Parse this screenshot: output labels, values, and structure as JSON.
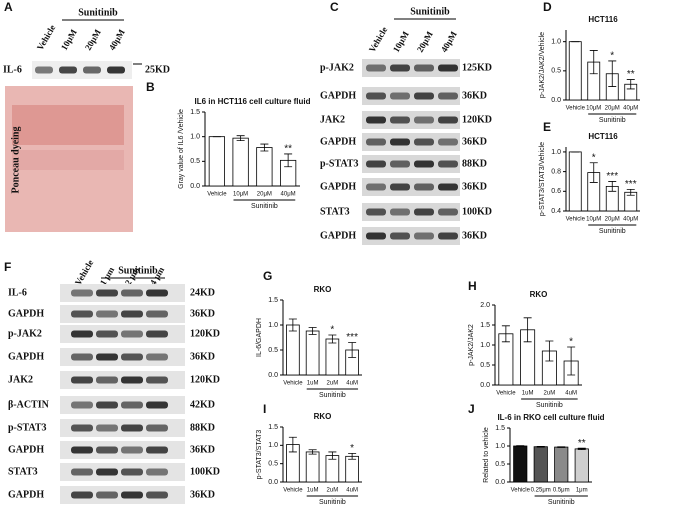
{
  "panels": {
    "letters": [
      "A",
      "B",
      "C",
      "D",
      "E",
      "F",
      "G",
      "H",
      "I",
      "J"
    ]
  },
  "blot_a": {
    "treatment": "Sunitinib",
    "lanes": [
      "Vehicle",
      "10μM",
      "20μM",
      "40μM"
    ],
    "rows": [
      {
        "label": "IL-6",
        "size": "25KD"
      }
    ],
    "stain": "Ponceau dyeing"
  },
  "blot_c": {
    "treatment": "Sunitinib",
    "lanes": [
      "Vehicle",
      "10μM",
      "20μM",
      "40μM"
    ],
    "rows": [
      {
        "label": "p-JAK2",
        "size": "125KD"
      },
      {
        "label": "GAPDH",
        "size": "36KD"
      },
      {
        "label": "JAK2",
        "size": "120KD"
      },
      {
        "label": "GAPDH",
        "size": "36KD"
      },
      {
        "label": "p-STAT3",
        "size": "88KD"
      },
      {
        "label": "GAPDH",
        "size": "36KD"
      },
      {
        "label": "STAT3",
        "size": "100KD"
      },
      {
        "label": "GAPDH",
        "size": "36KD"
      }
    ]
  },
  "blot_f": {
    "treatment": "Sunitinib",
    "lanes": [
      "Vehicle",
      "1 μm",
      "2 μm",
      "4 μm"
    ],
    "rows": [
      {
        "label": "IL-6",
        "size": "24KD"
      },
      {
        "label": "GAPDH",
        "size": "36KD"
      },
      {
        "label": "p-JAK2",
        "size": "120KD"
      },
      {
        "label": "GAPDH",
        "size": "36KD"
      },
      {
        "label": "JAK2",
        "size": "120KD"
      },
      {
        "label": "β-ACTIN",
        "size": "42KD"
      },
      {
        "label": "p-STAT3",
        "size": "88KD"
      },
      {
        "label": "GAPDH",
        "size": "36KD"
      },
      {
        "label": "STAT3",
        "size": "100KD"
      },
      {
        "label": "GAPDH",
        "size": "36KD"
      }
    ]
  },
  "chart_data": [
    {
      "type": "bar",
      "title": "IL6 in HCT116 cell culture fluid",
      "ylabel": "Gray value of IL6 /Vehicle",
      "categories": [
        "Vehicle",
        "10μM",
        "20μM",
        "40μM"
      ],
      "group": "Sunitinib",
      "values": [
        1.0,
        0.97,
        0.78,
        0.52
      ],
      "errors": [
        0,
        0.05,
        0.07,
        0.13
      ],
      "significance": [
        null,
        null,
        null,
        "**"
      ],
      "color": "#ffffff",
      "ylim": [
        0,
        1.5
      ],
      "yticks": [
        {
          "value": 0,
          "label": "0.0"
        },
        0.5,
        {
          "value": 1,
          "label": "1.0"
        },
        1.5
      ]
    },
    {
      "type": "bar",
      "title": "HCT116",
      "ylabel": "p-JAK2/JAK2/Vehicle",
      "categories": [
        "Vehicle",
        "10μM",
        "20μM",
        "40μM"
      ],
      "group": "Sunitinib",
      "values": [
        1.0,
        0.65,
        0.45,
        0.27
      ],
      "errors": [
        0,
        0.2,
        0.22,
        0.08
      ],
      "significance": [
        null,
        null,
        "*",
        "**"
      ],
      "color": "#ffffff",
      "ylim": [
        0,
        1.2
      ],
      "yticks": [
        {
          "value": 0,
          "label": "0.0"
        },
        0.5,
        {
          "value": 1,
          "label": "1.0"
        }
      ]
    },
    {
      "type": "bar",
      "title": "HCT116",
      "ylabel": "p-STAT3/STAT3/Vehicle",
      "categories": [
        "Vehicle",
        "10μM",
        "20μM",
        "40μM"
      ],
      "group": "Sunitinib",
      "values": [
        1.0,
        0.79,
        0.65,
        0.59
      ],
      "errors": [
        0,
        0.1,
        0.05,
        0.03
      ],
      "significance": [
        null,
        "*",
        "***",
        "***"
      ],
      "color": "#ffffff",
      "ylim": [
        0.4,
        1.05
      ],
      "yticks": [
        0.4,
        0.6,
        0.8,
        {
          "value": 1,
          "label": "1.0"
        }
      ]
    },
    {
      "type": "bar",
      "title": "RKO",
      "ylabel": "IL-6/GAPDH",
      "categories": [
        "Vehicle",
        "1uM",
        "2uM",
        "4uM"
      ],
      "group": "Sunitinib",
      "values": [
        1.0,
        0.88,
        0.72,
        0.5
      ],
      "errors": [
        0.12,
        0.07,
        0.08,
        0.15
      ],
      "significance": [
        null,
        null,
        "*",
        "***"
      ],
      "color": "#ffffff",
      "ylim": [
        0,
        1.5
      ],
      "yticks": [
        {
          "value": 0,
          "label": "0.0"
        },
        0.5,
        {
          "value": 1,
          "label": "1.0"
        },
        1.5
      ]
    },
    {
      "type": "bar",
      "title": "RKO",
      "ylabel": "p-JAK2/JAK2",
      "categories": [
        "Vehicle",
        "1uM",
        "2uM",
        "4uM"
      ],
      "group": "Sunitinib",
      "values": [
        1.28,
        1.38,
        0.85,
        0.6
      ],
      "errors": [
        0.2,
        0.3,
        0.25,
        0.35
      ],
      "significance": [
        null,
        null,
        null,
        "*"
      ],
      "color": "#ffffff",
      "ylim": [
        0,
        2.0
      ],
      "yticks": [
        {
          "value": 0,
          "label": "0.0"
        },
        0.5,
        {
          "value": 1,
          "label": "1.0"
        },
        1.5,
        {
          "value": 2,
          "label": "2.0"
        }
      ]
    },
    {
      "type": "bar",
      "title": "RKO",
      "ylabel": "p-STAT3/STAT3",
      "categories": [
        "Vehicle",
        "1uM",
        "2uM",
        "4uM"
      ],
      "group": "Sunitinib",
      "values": [
        1.02,
        0.82,
        0.72,
        0.7
      ],
      "errors": [
        0.2,
        0.06,
        0.1,
        0.08
      ],
      "significance": [
        null,
        null,
        null,
        "*"
      ],
      "color": "#ffffff",
      "ylim": [
        0,
        1.5
      ],
      "yticks": [
        {
          "value": 0,
          "label": "0.0"
        },
        0.5,
        {
          "value": 1,
          "label": "1.0"
        },
        1.5
      ]
    },
    {
      "type": "bar",
      "title": "IL-6 in RKO cell culture fluid",
      "ylabel": "Related to vehicle",
      "categories": [
        "Vehicle",
        "0.25μm",
        "0.5μm",
        "1μm"
      ],
      "group": "Sunitinib",
      "values": [
        1.0,
        0.98,
        0.97,
        0.92
      ],
      "errors": [
        0.01,
        0.01,
        0.01,
        0.02
      ],
      "significance": [
        null,
        null,
        null,
        "**"
      ],
      "colors": [
        "#111111",
        "#555555",
        "#8a8a8a",
        "#cfcfcf"
      ],
      "ylim": [
        0,
        1.5
      ],
      "yticks": [
        {
          "value": 0,
          "label": "0.0"
        },
        0.5,
        {
          "value": 1,
          "label": "1.0"
        },
        1.5
      ]
    }
  ]
}
